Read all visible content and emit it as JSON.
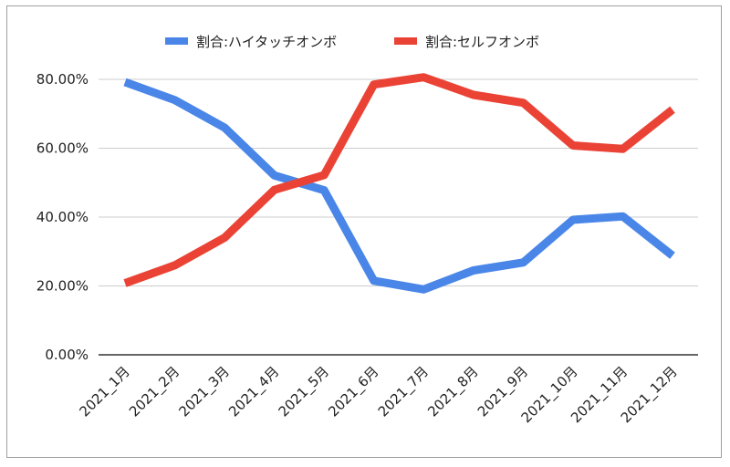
{
  "chart_data": {
    "type": "line",
    "title": "",
    "xlabel": "",
    "ylabel": "",
    "categories": [
      "2021_1月",
      "2021_2月",
      "2021_3月",
      "2021_4月",
      "2021_5月",
      "2021_6月",
      "2021_7月",
      "2021_8月",
      "2021_9月",
      "2021_10月",
      "2021_11月",
      "2021_12月"
    ],
    "series": [
      {
        "name": "割合:ハイタッチオンボ",
        "color": "#4a86e8",
        "values": [
          0.792,
          0.74,
          0.66,
          0.521,
          0.478,
          0.215,
          0.19,
          0.245,
          0.268,
          0.392,
          0.402,
          0.288
        ]
      },
      {
        "name": "割合:セルフオンボ",
        "color": "#ea4335",
        "values": [
          0.208,
          0.26,
          0.34,
          0.479,
          0.522,
          0.785,
          0.806,
          0.755,
          0.732,
          0.608,
          0.598,
          0.712
        ]
      }
    ],
    "ylim": [
      0,
      0.8
    ],
    "yticks": [
      0,
      0.2,
      0.4,
      0.6,
      0.8
    ],
    "ytick_labels": [
      "0.00%",
      "20.00%",
      "40.00%",
      "60.00%",
      "80.00%"
    ],
    "grid": true,
    "legend_position": "top-center"
  }
}
